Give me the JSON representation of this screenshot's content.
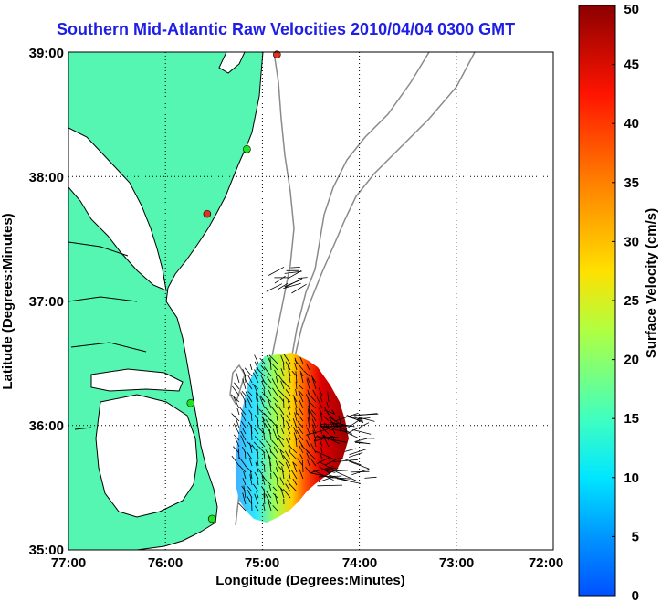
{
  "title": "Southern Mid-Atlantic Raw Velocities 2010/04/04 0300 GMT",
  "x_axis": {
    "label": "Longitude (Degrees:Minutes)",
    "ticks": [
      "77:00",
      "76:00",
      "75:00",
      "74:00",
      "73:00",
      "72:00"
    ]
  },
  "y_axis": {
    "label": "Latitude (Degrees:Minutes)",
    "ticks": [
      "39:00",
      "38:00",
      "37:00",
      "36:00",
      "35:00"
    ]
  },
  "colorbar": {
    "label": "Surface Velocity (cm/s)",
    "ticks": [
      "50",
      "45",
      "40",
      "35",
      "30",
      "25",
      "20",
      "15",
      "10",
      "5",
      "0"
    ],
    "min": 0,
    "max": 50,
    "colormap": "jet"
  },
  "chart_data": {
    "type": "map",
    "lon_range": [
      -77,
      -72
    ],
    "lat_range": [
      35,
      39
    ],
    "grid": true,
    "colors": {
      "land": "#55f5b2",
      "coast": "#000000",
      "isobath": "#8a8a8a",
      "station_active": "#22e022",
      "station_alert": "#e03020"
    },
    "stations": [
      {
        "lat": 38.98,
        "lon": -74.85,
        "status": "alert"
      },
      {
        "lat": 38.22,
        "lon": -75.16,
        "status": "active"
      },
      {
        "lat": 37.7,
        "lon": -75.57,
        "status": "alert"
      },
      {
        "lat": 36.18,
        "lon": -75.74,
        "status": "active"
      },
      {
        "lat": 35.25,
        "lon": -75.52,
        "status": "active"
      }
    ]
  }
}
